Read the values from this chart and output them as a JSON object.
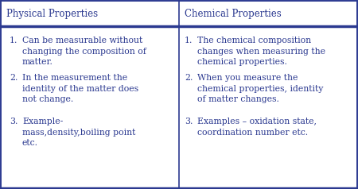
{
  "col1_header": "Physical Properties",
  "col2_header": "Chemical Properties",
  "col1_items": [
    "Can be measurable without\nchanging the composition of\nmatter.",
    "In the measurement the\nidentity of the matter does\nnot change.",
    "Example-\nmass,density,boiling point\netc."
  ],
  "col2_items": [
    "The chemical composition\nchanges when measuring the\nchemical properties.",
    "When you measure the\nchemical properties, identity\nof matter changes.",
    "Examples – oxidation state,\ncoordination number etc."
  ],
  "border_color": "#2b3990",
  "text_color": "#2b3990",
  "bg_color": "#ffffff",
  "header_fontsize": 8.5,
  "body_fontsize": 7.8,
  "fig_width": 4.5,
  "fig_height": 2.38,
  "dpi": 100
}
